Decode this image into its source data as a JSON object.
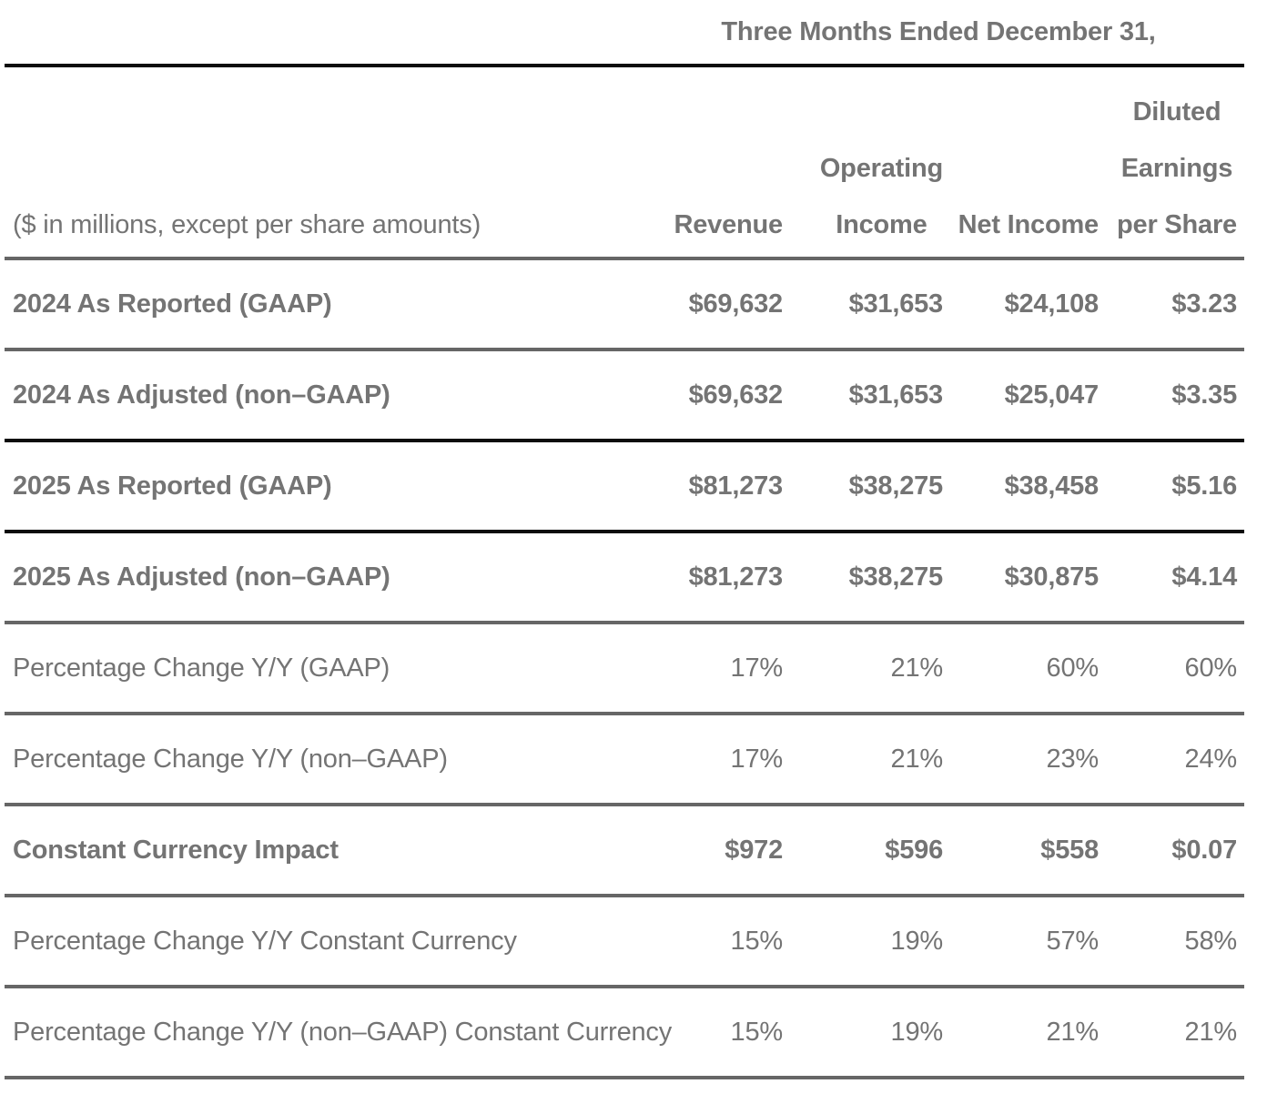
{
  "colors": {
    "text_color": "#747474",
    "line_black": "#0c0c0c",
    "line_gray": "#666666",
    "bg": "#ffffff"
  },
  "header": {
    "period": "Three Months Ended December 31,",
    "corner_label": "($ in millions, except per share amounts)",
    "columns": [
      {
        "line1": "",
        "line2": "",
        "line3": "Revenue"
      },
      {
        "line1": "",
        "line2": "Operating",
        "line3": "Income"
      },
      {
        "line1": "",
        "line2": "",
        "line3": "Net Income"
      },
      {
        "line1": "Diluted",
        "line2": "Earnings",
        "line3": "per Share"
      }
    ]
  },
  "rows": [
    {
      "label": "2024 As Reported (GAAP)",
      "values": [
        "$69,632",
        "$31,653",
        "$24,108",
        "$3.23"
      ]
    },
    {
      "label": "2024 As Adjusted (non–GAAP)",
      "values": [
        "$69,632",
        "$31,653",
        "$25,047",
        "$3.35"
      ]
    },
    {
      "label": "2025 As Reported (GAAP)",
      "values": [
        "$81,273",
        "$38,275",
        "$38,458",
        "$5.16"
      ]
    },
    {
      "label": "2025 As Adjusted (non–GAAP)",
      "values": [
        "$81,273",
        "$38,275",
        "$30,875",
        "$4.14"
      ]
    },
    {
      "label": "Percentage Change Y/Y (GAAP)",
      "values": [
        "17%",
        "21%",
        "60%",
        "60%"
      ]
    },
    {
      "label": "Percentage Change Y/Y (non–GAAP)",
      "values": [
        "17%",
        "21%",
        "23%",
        "24%"
      ]
    },
    {
      "label": "Constant Currency Impact",
      "values": [
        "$972",
        "$596",
        "$558",
        "$0.07"
      ]
    },
    {
      "label": "Percentage Change Y/Y Constant Currency",
      "values": [
        "15%",
        "19%",
        "57%",
        "58%"
      ]
    },
    {
      "label": "Percentage Change Y/Y (non–GAAP) Constant Currency",
      "values": [
        "15%",
        "19%",
        "21%",
        "21%"
      ]
    }
  ]
}
